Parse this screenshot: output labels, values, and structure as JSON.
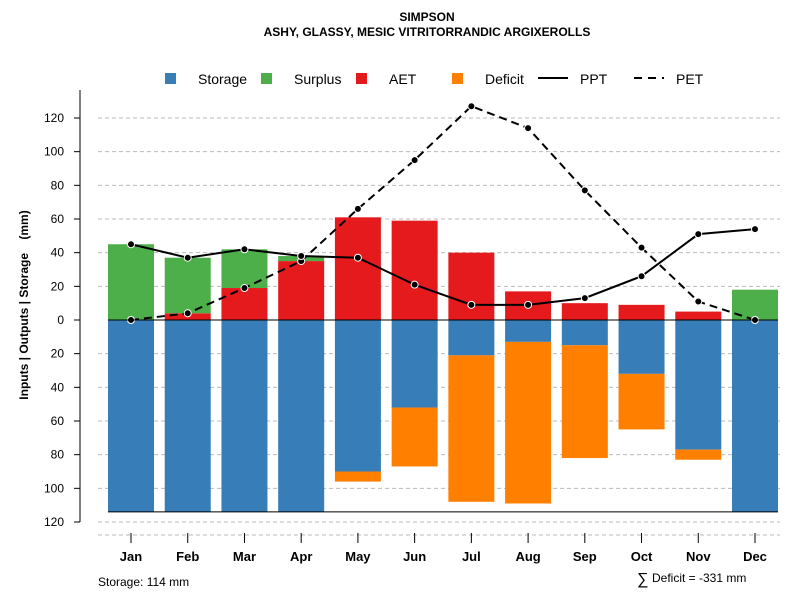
{
  "chart_data": {
    "type": "bar",
    "title": "SIMPSON",
    "subtitle": "ASHY, GLASSY, MESIC VITRITORRANDIC ARGIXEROLLS",
    "ylabel": "Inputs | Outputs | Storage    (mm)",
    "xlabel": "",
    "ylim": [
      -120,
      130
    ],
    "yticks": [
      120,
      100,
      80,
      60,
      40,
      20,
      0,
      -20,
      -40,
      -60,
      -80,
      -100,
      -120
    ],
    "ytick_labels": [
      "120",
      "100",
      "80",
      "60",
      "40",
      "20",
      "0",
      "20",
      "40",
      "60",
      "80",
      "100",
      "120"
    ],
    "grid": true,
    "legend_position": "top",
    "categories": [
      "Jan",
      "Feb",
      "Mar",
      "Apr",
      "May",
      "Jun",
      "Jul",
      "Aug",
      "Sep",
      "Oct",
      "Nov",
      "Dec"
    ],
    "series": [
      {
        "name": "Storage",
        "kind": "bar",
        "color": "#377EB8",
        "values": [
          -114,
          -114,
          -114,
          -114,
          -90,
          -52,
          -21,
          -13,
          -15,
          -32,
          -77,
          -114
        ]
      },
      {
        "name": "Surplus",
        "kind": "bar",
        "color": "#4DAF4A",
        "values": [
          45,
          33,
          23,
          3,
          0,
          0,
          0,
          0,
          0,
          0,
          0,
          18
        ]
      },
      {
        "name": "AET",
        "kind": "bar",
        "color": "#E41A1C",
        "values": [
          0,
          4,
          19,
          35,
          61,
          59,
          40,
          17,
          10,
          9,
          5,
          0
        ]
      },
      {
        "name": "Deficit",
        "kind": "bar",
        "color": "#FF7F00",
        "values": [
          0,
          0,
          0,
          0,
          -6,
          -35,
          -87,
          -96,
          -67,
          -33,
          -6,
          0
        ]
      },
      {
        "name": "PPT",
        "kind": "line",
        "style": "solid",
        "color": "#000000",
        "values": [
          45,
          37,
          42,
          38,
          37,
          21,
          9,
          9,
          13,
          26,
          51,
          54
        ]
      },
      {
        "name": "PET",
        "kind": "line",
        "style": "dashed",
        "color": "#000000",
        "values": [
          0,
          4,
          19,
          35,
          66,
          95,
          127,
          114,
          77,
          43,
          11,
          0
        ]
      }
    ],
    "annotations": {
      "storage": "Storage: 114 mm",
      "deficit_symbol": "∑",
      "deficit": "Deficit = -331 mm"
    }
  }
}
